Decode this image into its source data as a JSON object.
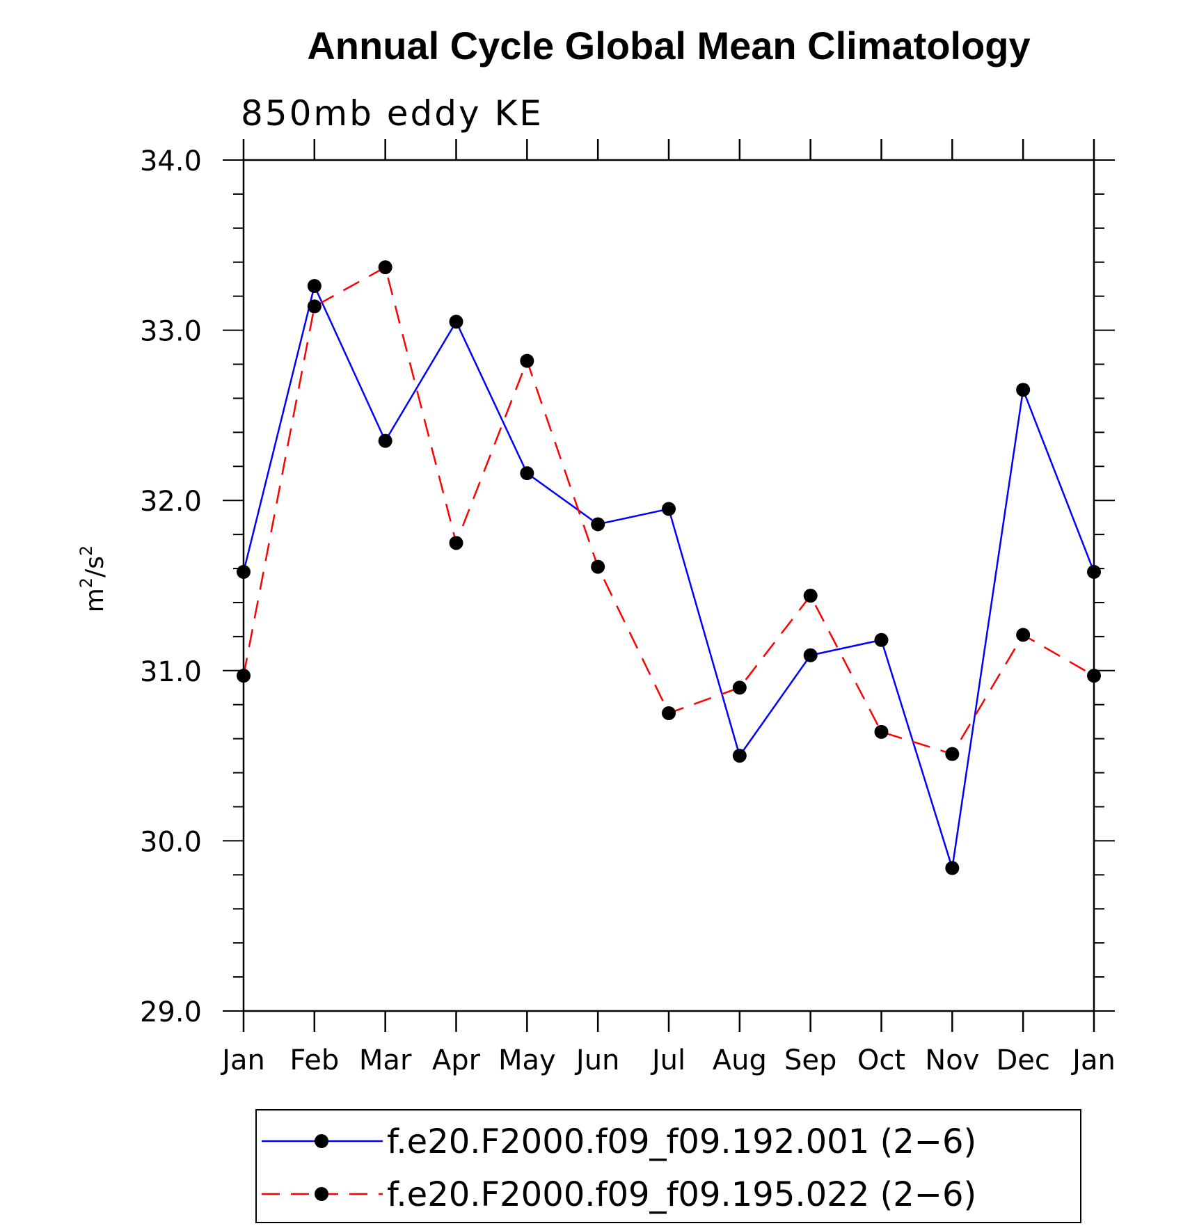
{
  "chart_data": {
    "type": "line",
    "title": "Annual Cycle Global Mean Climatology",
    "subtitle": "850mb eddy KE",
    "ylabel": "m",
    "ylabel_sup1": "2",
    "ylabel_mid": "/s",
    "ylabel_sup2": "2",
    "xlabel": "",
    "ylim": [
      29.0,
      34.0
    ],
    "yticks": [
      "29.0",
      "30.0",
      "31.0",
      "32.0",
      "33.0",
      "34.0"
    ],
    "categories": [
      "Jan",
      "Feb",
      "Mar",
      "Apr",
      "May",
      "Jun",
      "Jul",
      "Aug",
      "Sep",
      "Oct",
      "Nov",
      "Dec",
      "Jan"
    ],
    "series": [
      {
        "name": "f.e20.F2000.f09_f09.192.001 (2−6)",
        "color": "#0000ff",
        "dash": "solid",
        "values": [
          31.58,
          33.26,
          32.35,
          33.05,
          32.16,
          31.86,
          31.95,
          30.5,
          31.09,
          31.18,
          29.84,
          32.65,
          31.58
        ]
      },
      {
        "name": "f.e20.F2000.f09_f09.195.022 (2−6)",
        "color": "#ff0000",
        "dash": "dashed",
        "values": [
          30.97,
          33.14,
          33.37,
          31.75,
          32.82,
          31.61,
          30.75,
          30.9,
          31.44,
          30.64,
          30.51,
          31.21,
          30.97
        ]
      }
    ],
    "legend_position": "bottom"
  }
}
